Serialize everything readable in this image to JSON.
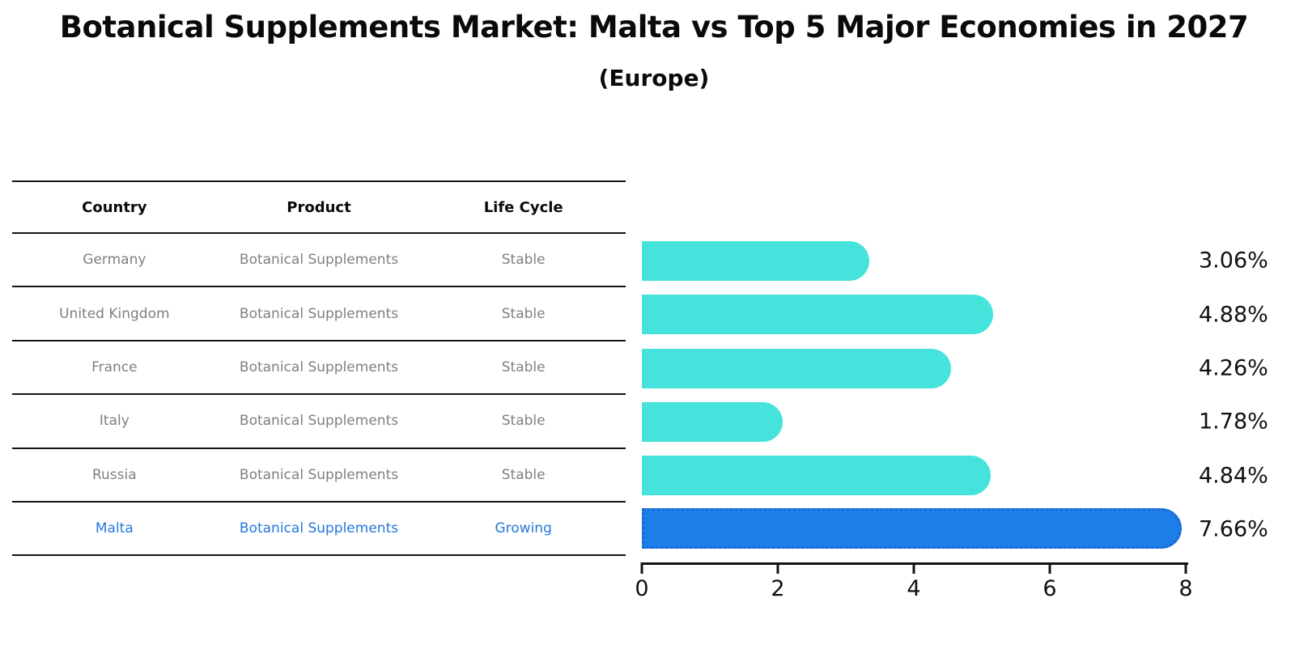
{
  "page": {
    "title": "Botanical Supplements Market: Malta vs Top 5 Major Economies in 2027",
    "subtitle": "(Europe)"
  },
  "table": {
    "headers": [
      "Country",
      "Product",
      "Life Cycle"
    ],
    "rows": [
      {
        "country": "Germany",
        "product": "Botanical Supplements",
        "life_cycle": "Stable",
        "highlight": false
      },
      {
        "country": "United Kingdom",
        "product": "Botanical Supplements",
        "life_cycle": "Stable",
        "highlight": false
      },
      {
        "country": "France",
        "product": "Botanical Supplements",
        "life_cycle": "Stable",
        "highlight": false
      },
      {
        "country": "Italy",
        "product": "Botanical Supplements",
        "life_cycle": "Stable",
        "highlight": false
      },
      {
        "country": "Russia",
        "product": "Botanical Supplements",
        "life_cycle": "Stable",
        "highlight": false
      },
      {
        "country": "Malta",
        "product": "Botanical Supplements",
        "life_cycle": "Growing",
        "highlight": true
      }
    ]
  },
  "chart_data": {
    "type": "bar",
    "orientation": "horizontal",
    "title": "Botanical Supplements Market: Malta vs Top 5 Major Economies in 2027 (Europe)",
    "categories": [
      "Germany",
      "United Kingdom",
      "France",
      "Italy",
      "Russia",
      "Malta"
    ],
    "values": [
      3.06,
      4.88,
      4.26,
      1.78,
      4.84,
      7.66
    ],
    "value_labels": [
      "3.06%",
      "4.88%",
      "4.26%",
      "1.78%",
      "4.84%",
      "7.66%"
    ],
    "xlim": [
      0,
      8
    ],
    "x_ticks": [
      0,
      2,
      4,
      6,
      8
    ],
    "grid": false,
    "legend": false,
    "bar_color": "#46e3dc",
    "highlight_color": "#1e7ee8",
    "highlight_index": 5
  },
  "colors": {
    "bar": "#46e3dc",
    "highlight_bar": "#1e7ee8",
    "highlight_border": "#1a66d4",
    "highlight_text": "#2478db",
    "muted_text": "#7f7f7f",
    "line": "#141414"
  }
}
